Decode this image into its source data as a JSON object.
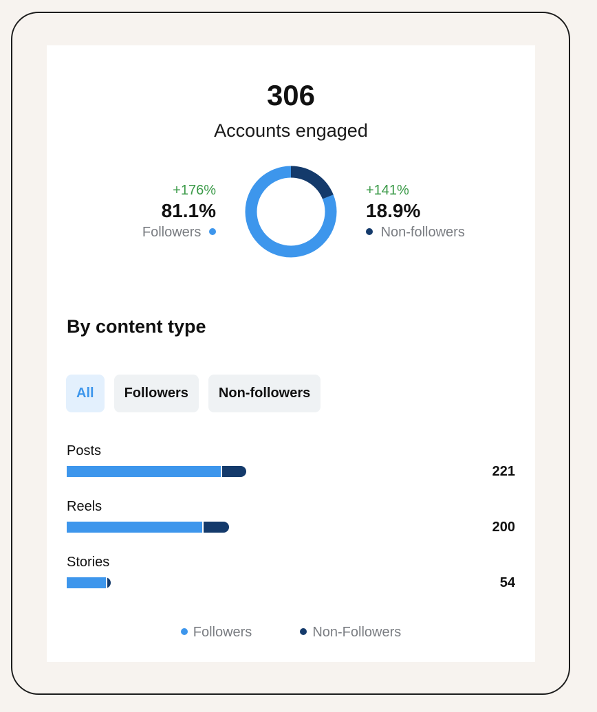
{
  "summary": {
    "total": "306",
    "label": "Accounts engaged"
  },
  "followers": {
    "change": "+176%",
    "percent": "81.1%",
    "label": "Followers",
    "share": 81.1
  },
  "non_followers": {
    "change": "+141%",
    "percent": "18.9%",
    "label": "Non-followers",
    "share": 18.9
  },
  "colors": {
    "followers": "#3d96ec",
    "non_followers": "#143a6b",
    "change_positive": "#3b9a48"
  },
  "section": {
    "title": "By content type"
  },
  "tabs": [
    {
      "label": "All",
      "active": true,
      "color": "#3d96ec"
    },
    {
      "label": "Followers",
      "active": false,
      "color": "#111111"
    },
    {
      "label": "Non-followers",
      "active": false,
      "color": "#111111"
    }
  ],
  "content_types": [
    {
      "label": "Posts",
      "total": "221",
      "followers": 0.865,
      "non_followers": 0.135
    },
    {
      "label": "Reels",
      "total": "200",
      "followers": 0.84,
      "non_followers": 0.16
    },
    {
      "label": "Stories",
      "total": "54",
      "followers": 0.93,
      "non_followers": 0.07
    }
  ],
  "legend": {
    "followers": "Followers",
    "non_followers": "Non-Followers"
  },
  "chart_data": [
    {
      "type": "pie",
      "categories": [
        "Followers",
        "Non-followers"
      ],
      "values": [
        81.1,
        18.9
      ],
      "title": "Accounts engaged"
    },
    {
      "type": "bar",
      "orientation": "horizontal",
      "stacked": true,
      "categories": [
        "Posts",
        "Reels",
        "Stories"
      ],
      "series": [
        {
          "name": "Followers",
          "values": [
            191,
            168,
            50
          ]
        },
        {
          "name": "Non-Followers",
          "values": [
            30,
            32,
            4
          ]
        }
      ],
      "totals": [
        221,
        200,
        54
      ],
      "title": "By content type"
    }
  ]
}
